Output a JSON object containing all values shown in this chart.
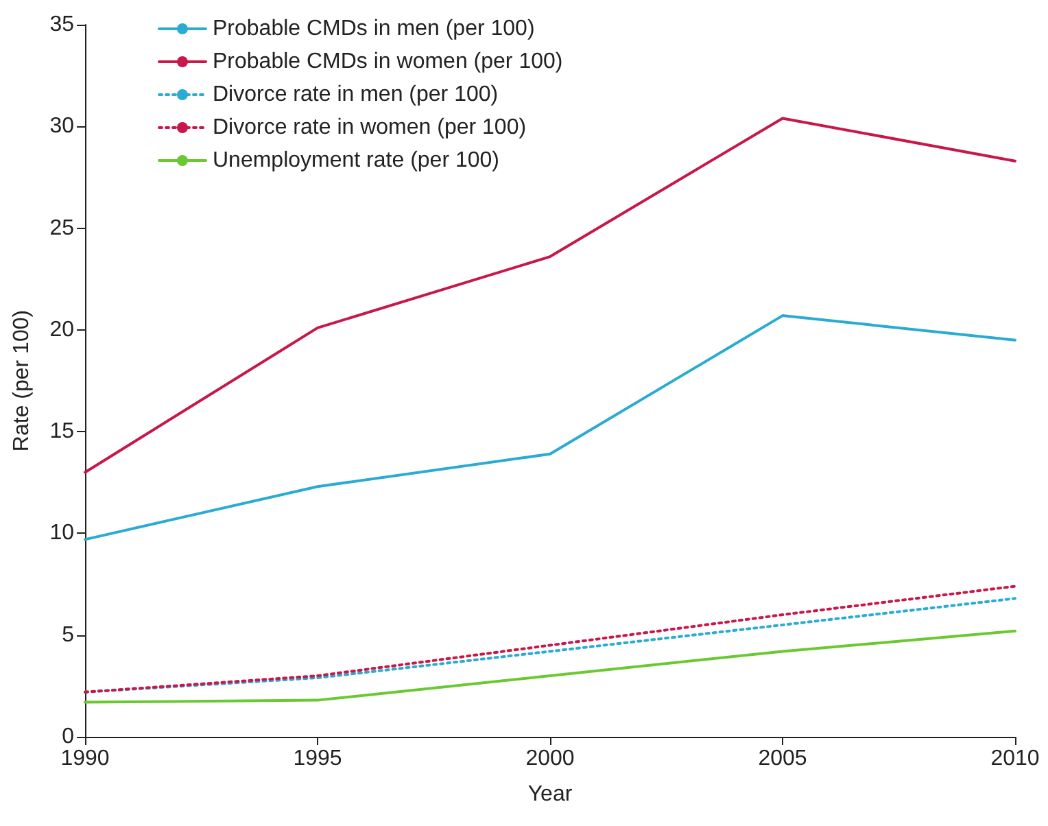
{
  "chart_data": {
    "type": "line",
    "xlabel": "Year",
    "ylabel": "Rate (per 100)",
    "x": [
      1990,
      1995,
      2000,
      2005,
      2010
    ],
    "xlim": [
      1990,
      2010
    ],
    "xticks": [
      1990,
      1995,
      2000,
      2005,
      2010
    ],
    "ylim": [
      0,
      35
    ],
    "yticks": [
      0,
      5,
      10,
      15,
      20,
      25,
      30,
      35
    ],
    "grid": false,
    "legend": "top left",
    "marker": "none",
    "series": [
      {
        "name": "Probable CMDs in men (per 100)",
        "color": "#29abd4",
        "line_style": "solid",
        "values": [
          9.7,
          12.3,
          13.9,
          20.7,
          19.5
        ]
      },
      {
        "name": "Probable CMDs in women (per 100)",
        "color": "#c8174a",
        "line_style": "solid",
        "values": [
          13.0,
          20.1,
          23.6,
          30.4,
          28.3
        ]
      },
      {
        "name": "Divorce rate in men (per 100)",
        "color": "#29abd4",
        "line_style": "dotted",
        "values": [
          2.2,
          2.9,
          4.2,
          5.5,
          6.8
        ]
      },
      {
        "name": "Divorce rate in women (per 100)",
        "color": "#c8174a",
        "line_style": "dotted",
        "values": [
          2.2,
          3.0,
          4.5,
          6.0,
          7.4
        ]
      },
      {
        "name": "Unemployment rate (per 100)",
        "color": "#6cc832",
        "line_style": "solid",
        "values": [
          1.7,
          1.8,
          3.0,
          4.2,
          5.2
        ]
      }
    ]
  }
}
